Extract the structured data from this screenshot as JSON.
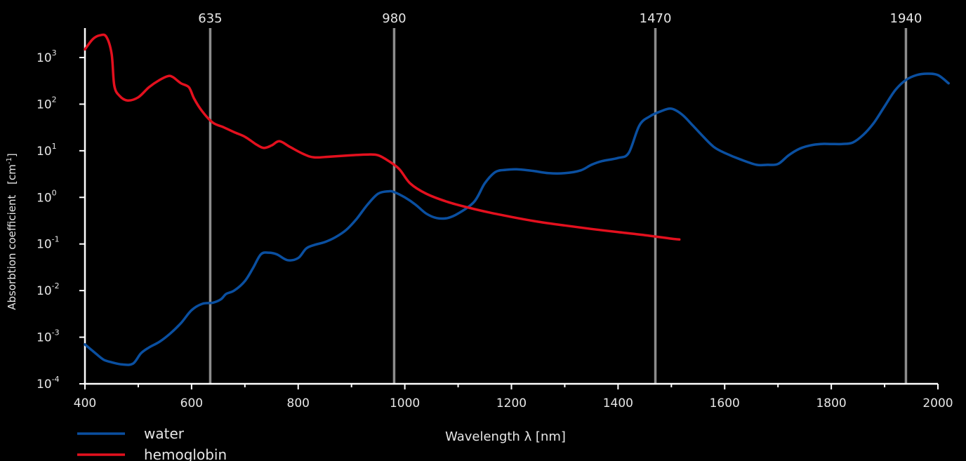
{
  "chart_data": {
    "type": "line",
    "xlabel": "Wavelength  λ [nm]",
    "ylabel": "Absorbtion coefficient",
    "ylabel_unit": "[cm",
    "ylabel_unit_exp": "-1",
    "ylabel_unit_close": "]",
    "xlim": [
      400,
      2000
    ],
    "ylim": [
      0.0001,
      5000
    ],
    "yscale": "log",
    "x_ticks": [
      {
        "value": 400,
        "label": "400"
      },
      {
        "value": 600,
        "label": "600"
      },
      {
        "value": 800,
        "label": "800"
      },
      {
        "value": 1000,
        "label": "1000"
      },
      {
        "value": 1200,
        "label": "1200"
      },
      {
        "value": 1400,
        "label": "1400"
      },
      {
        "value": 1600,
        "label": "1600"
      },
      {
        "value": 1800,
        "label": "1800"
      },
      {
        "value": 2000,
        "label": "2000"
      }
    ],
    "y_ticks": [
      {
        "exp": -4,
        "base": "10",
        "sup": "-4"
      },
      {
        "exp": -3,
        "base": "10",
        "sup": "-3"
      },
      {
        "exp": -2,
        "base": "10",
        "sup": "-2"
      },
      {
        "exp": -1,
        "base": "10",
        "sup": "-1"
      },
      {
        "exp": 0,
        "base": "10",
        "sup": "0"
      },
      {
        "exp": 1,
        "base": "10",
        "sup": "1"
      },
      {
        "exp": 2,
        "base": "10",
        "sup": "2"
      },
      {
        "exp": 3,
        "base": "10",
        "sup": "3"
      }
    ],
    "reference_lines": [
      {
        "x": 635,
        "label": "635"
      },
      {
        "x": 980,
        "label": "980"
      },
      {
        "x": 1470,
        "label": "1470"
      },
      {
        "x": 1940,
        "label": "1940"
      }
    ],
    "legend_position": "bottom-left",
    "grid": false,
    "series": [
      {
        "name": "water",
        "color": "#0a4fa0",
        "points": [
          [
            400,
            0.0007
          ],
          [
            420,
            0.00045
          ],
          [
            435,
            0.00033
          ],
          [
            450,
            0.00029
          ],
          [
            470,
            0.00026
          ],
          [
            490,
            0.00027
          ],
          [
            505,
            0.00045
          ],
          [
            520,
            0.0006
          ],
          [
            540,
            0.0008
          ],
          [
            560,
            0.0012
          ],
          [
            580,
            0.002
          ],
          [
            600,
            0.0038
          ],
          [
            620,
            0.0052
          ],
          [
            640,
            0.0055
          ],
          [
            655,
            0.0065
          ],
          [
            665,
            0.0085
          ],
          [
            680,
            0.01
          ],
          [
            700,
            0.016
          ],
          [
            715,
            0.03
          ],
          [
            730,
            0.06
          ],
          [
            745,
            0.065
          ],
          [
            760,
            0.06
          ],
          [
            780,
            0.045
          ],
          [
            800,
            0.05
          ],
          [
            815,
            0.08
          ],
          [
            830,
            0.095
          ],
          [
            850,
            0.11
          ],
          [
            870,
            0.14
          ],
          [
            890,
            0.2
          ],
          [
            910,
            0.35
          ],
          [
            930,
            0.7
          ],
          [
            950,
            1.2
          ],
          [
            970,
            1.35
          ],
          [
            980,
            1.3
          ],
          [
            1000,
            1.0
          ],
          [
            1020,
            0.7
          ],
          [
            1040,
            0.45
          ],
          [
            1060,
            0.36
          ],
          [
            1080,
            0.36
          ],
          [
            1100,
            0.45
          ],
          [
            1130,
            0.8
          ],
          [
            1150,
            2.0
          ],
          [
            1170,
            3.5
          ],
          [
            1190,
            3.9
          ],
          [
            1210,
            4.0
          ],
          [
            1240,
            3.7
          ],
          [
            1270,
            3.3
          ],
          [
            1300,
            3.3
          ],
          [
            1330,
            3.8
          ],
          [
            1350,
            5.0
          ],
          [
            1370,
            6.0
          ],
          [
            1400,
            7.0
          ],
          [
            1420,
            9.0
          ],
          [
            1440,
            35
          ],
          [
            1460,
            55
          ],
          [
            1480,
            70
          ],
          [
            1500,
            80
          ],
          [
            1520,
            60
          ],
          [
            1540,
            35
          ],
          [
            1560,
            20
          ],
          [
            1580,
            12
          ],
          [
            1600,
            9
          ],
          [
            1630,
            6.5
          ],
          [
            1660,
            5.0
          ],
          [
            1680,
            5.0
          ],
          [
            1700,
            5.2
          ],
          [
            1720,
            8
          ],
          [
            1740,
            11
          ],
          [
            1760,
            13
          ],
          [
            1780,
            14
          ],
          [
            1800,
            14
          ],
          [
            1820,
            14
          ],
          [
            1840,
            15
          ],
          [
            1860,
            22
          ],
          [
            1880,
            40
          ],
          [
            1900,
            90
          ],
          [
            1920,
            200
          ],
          [
            1940,
            330
          ],
          [
            1960,
            420
          ],
          [
            1980,
            450
          ],
          [
            2000,
            420
          ],
          [
            2020,
            280
          ]
        ]
      },
      {
        "name": "hemoglobin",
        "color": "#e3101e",
        "points": [
          [
            400,
            1500
          ],
          [
            415,
            2500
          ],
          [
            428,
            3000
          ],
          [
            440,
            2800
          ],
          [
            450,
            1200
          ],
          [
            455,
            250
          ],
          [
            465,
            150
          ],
          [
            480,
            120
          ],
          [
            500,
            140
          ],
          [
            520,
            230
          ],
          [
            540,
            330
          ],
          [
            556,
            400
          ],
          [
            565,
            380
          ],
          [
            580,
            280
          ],
          [
            595,
            230
          ],
          [
            605,
            130
          ],
          [
            620,
            70
          ],
          [
            640,
            40
          ],
          [
            660,
            32
          ],
          [
            680,
            25
          ],
          [
            700,
            20
          ],
          [
            720,
            14
          ],
          [
            735,
            11.5
          ],
          [
            750,
            13
          ],
          [
            765,
            16
          ],
          [
            785,
            12
          ],
          [
            810,
            8.5
          ],
          [
            830,
            7.2
          ],
          [
            860,
            7.5
          ],
          [
            900,
            8
          ],
          [
            930,
            8.3
          ],
          [
            950,
            8.0
          ],
          [
            970,
            6.0
          ],
          [
            990,
            4.0
          ],
          [
            1010,
            2.0
          ],
          [
            1040,
            1.2
          ],
          [
            1080,
            0.8
          ],
          [
            1120,
            0.6
          ],
          [
            1160,
            0.47
          ],
          [
            1200,
            0.38
          ],
          [
            1250,
            0.3
          ],
          [
            1300,
            0.25
          ],
          [
            1350,
            0.21
          ],
          [
            1400,
            0.18
          ],
          [
            1450,
            0.155
          ],
          [
            1500,
            0.13
          ],
          [
            1515,
            0.125
          ]
        ]
      }
    ]
  }
}
